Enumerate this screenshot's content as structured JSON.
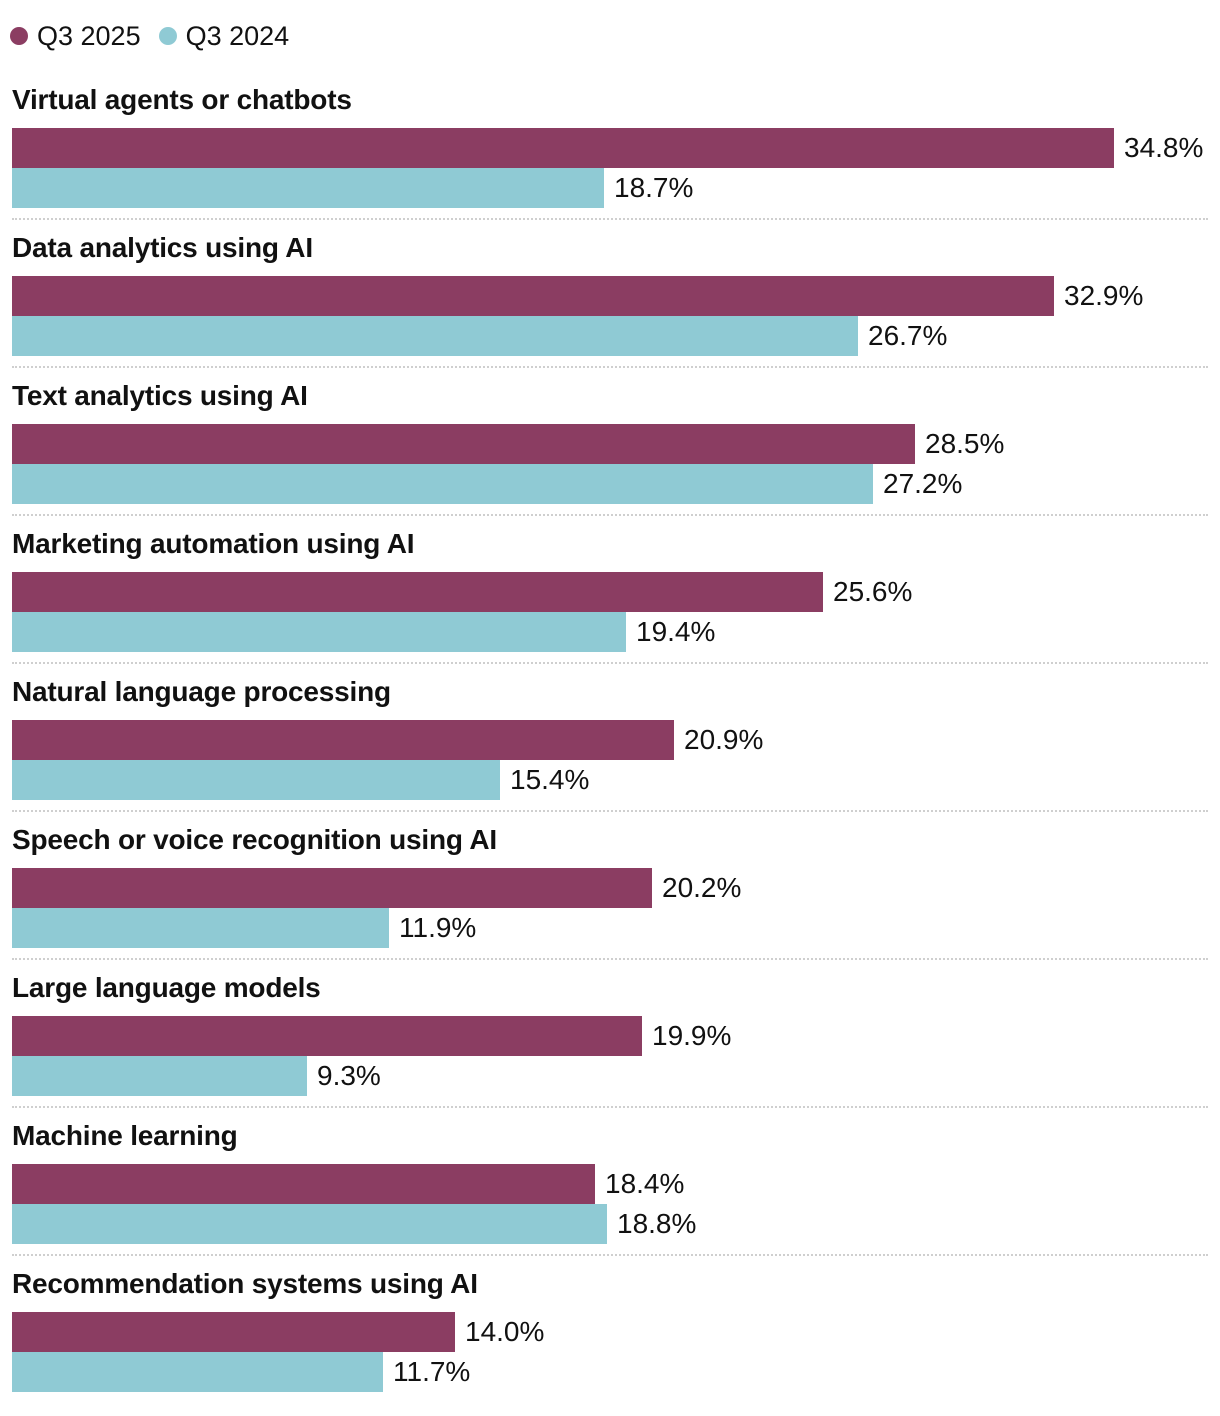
{
  "chart_data": {
    "type": "bar",
    "orientation": "horizontal",
    "unit": "%",
    "title": "",
    "xlabel": "",
    "ylabel": "",
    "xlim": [
      0,
      35
    ],
    "legend_position": "top-left",
    "categories": [
      "Virtual agents or chatbots",
      "Data analytics using AI",
      "Text analytics using AI",
      "Marketing automation using AI",
      "Natural language processing",
      "Speech or voice recognition using AI",
      "Large language models",
      "Machine learning",
      "Recommendation systems using AI"
    ],
    "series": [
      {
        "name": "Q3 2025",
        "color": "#8b3d62",
        "values": [
          34.8,
          32.9,
          28.5,
          25.6,
          20.9,
          20.2,
          19.9,
          18.4,
          14.0
        ],
        "labels": [
          "34.8%",
          "32.9%",
          "28.5%",
          "25.6%",
          "20.9%",
          "20.2%",
          "19.9%",
          "18.4%",
          "14.0%"
        ]
      },
      {
        "name": "Q3 2024",
        "color": "#8fcad4",
        "values": [
          18.7,
          26.7,
          27.2,
          19.4,
          15.4,
          11.9,
          9.3,
          18.8,
          11.7
        ],
        "labels": [
          "18.7%",
          "26.7%",
          "27.2%",
          "19.4%",
          "15.4%",
          "11.9%",
          "9.3%",
          "18.8%",
          "11.7%"
        ]
      }
    ]
  }
}
